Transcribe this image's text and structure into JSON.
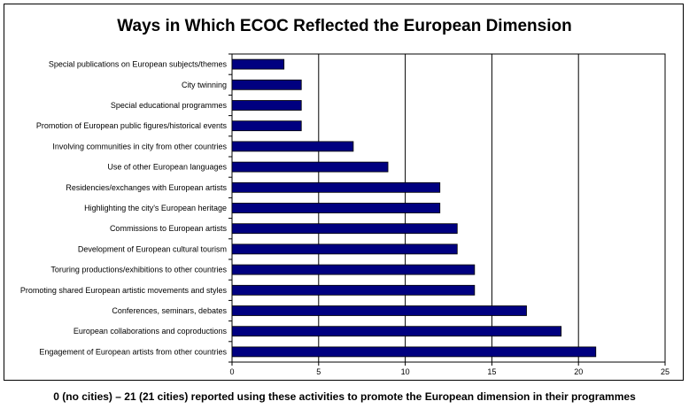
{
  "chart_data": {
    "type": "bar",
    "orientation": "horizontal",
    "title": "Ways in Which ECOC Reflected the European Dimension",
    "xlabel": "",
    "ylabel": "",
    "xlim": [
      0,
      25
    ],
    "x_ticks": [
      "0",
      "5",
      "10",
      "15",
      "20",
      "25"
    ],
    "grid": "vertical gridlines",
    "legend": "none",
    "bar_color": "#000080",
    "categories": [
      "Special publications on European subjects/themes",
      "City twinning",
      "Special educational programmes",
      "Promotion of European public figures/historical events",
      "Involving communities in city from other countries",
      "Use of other European languages",
      "Residencies/exchanges with European artists",
      "Highlighting the city's European heritage",
      "Commissions to European artists",
      "Development of European cultural tourism",
      "Toruring productions/exhibitions to other countries",
      "Promoting shared European artistic movements and styles",
      "Conferences, seminars, debates",
      "European collaborations and coproductions",
      "Engagement of European artists from other countries"
    ],
    "values": [
      3,
      4,
      4,
      4,
      7,
      9,
      12,
      12,
      13,
      13,
      14,
      14,
      17,
      19,
      21
    ]
  },
  "footnote": "0 (no cities) – 21 (21 cities) reported using these activities to promote the European dimension in their programmes"
}
